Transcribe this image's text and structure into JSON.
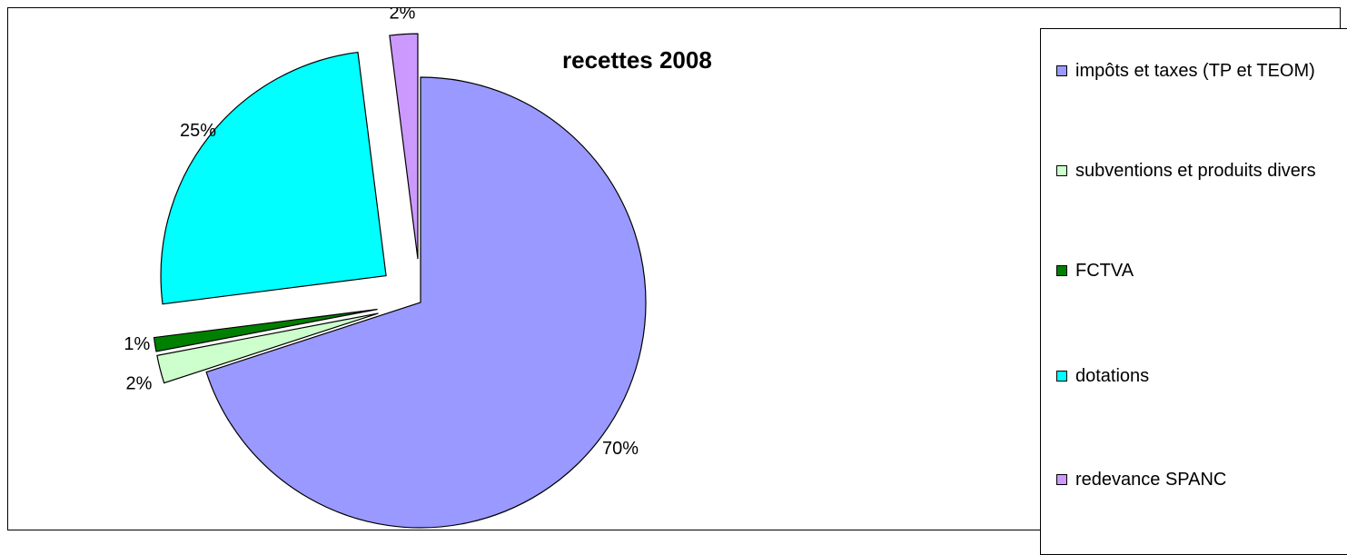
{
  "chart_data": {
    "type": "pie",
    "title": "recettes 2008",
    "exploded": true,
    "legend_position": "right",
    "slices": [
      {
        "label": "impôts et taxes (TP et TEOM)",
        "value": 70,
        "display": "70%",
        "color": "#9999ff"
      },
      {
        "label": "subventions et produits divers",
        "value": 2,
        "display": "2%",
        "color": "#ccffcc"
      },
      {
        "label": "FCTVA",
        "value": 1,
        "display": "1%",
        "color": "#008000"
      },
      {
        "label": "dotations",
        "value": 25,
        "display": "25%",
        "color": "#00ffff"
      },
      {
        "label": "redevance SPANC",
        "value": 2,
        "display": "2%",
        "color": "#cc99ff"
      }
    ]
  }
}
